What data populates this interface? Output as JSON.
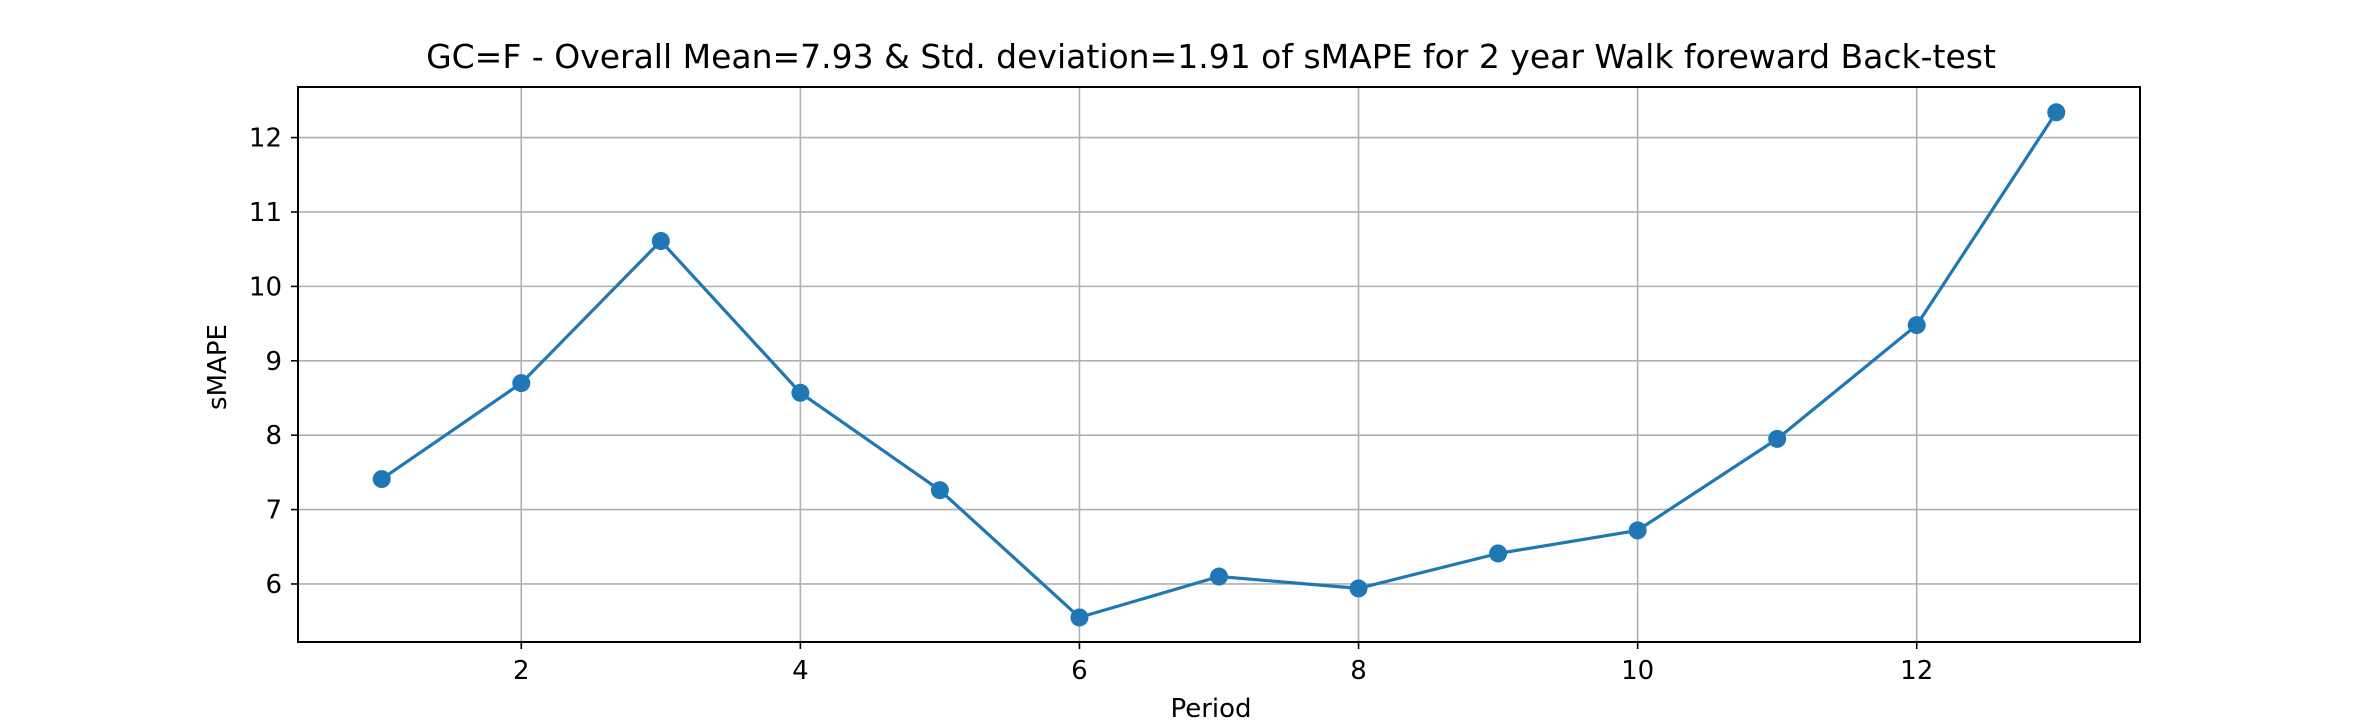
{
  "chart_data": {
    "type": "line",
    "title": "GC=F - Overall Mean=7.93 & Std. deviation=1.91 of sMAPE for 2 year Walk foreward Back-test",
    "xlabel": "Period",
    "ylabel": "sMAPE",
    "x": [
      1,
      2,
      3,
      4,
      5,
      6,
      7,
      8,
      9,
      10,
      11,
      12,
      13
    ],
    "series": [
      {
        "values": [
          7.41,
          8.7,
          10.61,
          8.57,
          7.26,
          5.55,
          6.1,
          5.94,
          6.41,
          6.72,
          7.95,
          9.48,
          12.34
        ],
        "color": "#1f77b4",
        "marker": "circle"
      }
    ],
    "xlim": [
      0.4,
      13.6
    ],
    "ylim": [
      5.22,
      12.68
    ],
    "xticks": [
      2,
      4,
      6,
      8,
      10,
      12
    ],
    "yticks": [
      6,
      7,
      8,
      9,
      10,
      11,
      12
    ],
    "grid": true,
    "legend": "none"
  }
}
